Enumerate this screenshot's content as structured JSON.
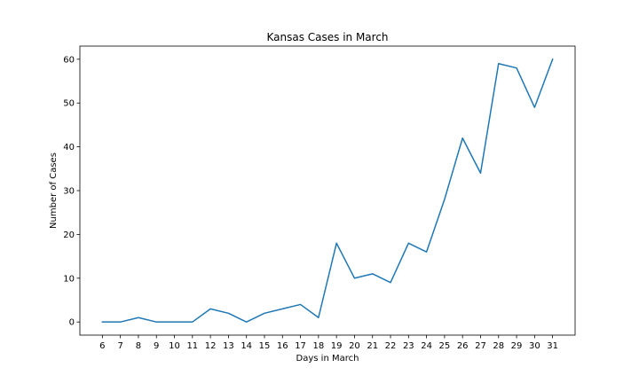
{
  "chart_data": {
    "type": "line",
    "title": "Kansas Cases in March",
    "xlabel": "Days in March",
    "ylabel": "Number of Cases",
    "x": [
      6,
      7,
      8,
      9,
      10,
      11,
      12,
      13,
      14,
      15,
      16,
      17,
      18,
      19,
      20,
      21,
      22,
      23,
      24,
      25,
      26,
      27,
      28,
      29,
      30,
      31
    ],
    "series": [
      {
        "values": [
          0,
          0,
          1,
          0,
          0,
          0,
          3,
          2,
          0,
          2,
          3,
          4,
          1,
          18,
          10,
          11,
          9,
          18,
          16,
          28,
          42,
          34,
          59,
          58,
          49,
          60
        ],
        "color": "#1f77b4"
      }
    ],
    "xlim": [
      4.75,
      32.25
    ],
    "ylim": [
      -3,
      63
    ],
    "yticks": [
      0,
      10,
      20,
      30,
      40,
      50,
      60
    ],
    "grid": false,
    "legend": "none"
  }
}
